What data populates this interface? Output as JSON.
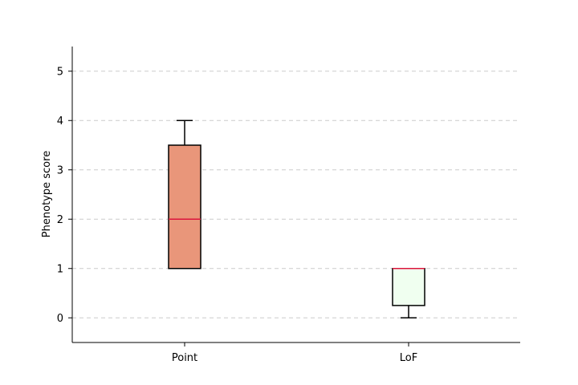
{
  "chart_data": {
    "type": "box",
    "title": "",
    "xlabel": "",
    "ylabel": "Phenotype score",
    "categories": [
      "Point",
      "LoF"
    ],
    "ylim": [
      -0.5,
      5.5
    ],
    "yticks": [
      0,
      1,
      2,
      3,
      4,
      5
    ],
    "grid": "horizontal dashed",
    "boxes": [
      {
        "category": "Point",
        "whisker_low": 1,
        "q1": 1,
        "median": 2,
        "q3": 3.5,
        "whisker_high": 4,
        "fill": "#E9967A"
      },
      {
        "category": "LoF",
        "whisker_low": 0,
        "q1": 0.25,
        "median": 1,
        "q3": 1,
        "whisker_high": 1,
        "fill": "#F0FFF0"
      }
    ],
    "colors": {
      "median": "#DC143C",
      "outline": "#000000",
      "grid": "#cccccc"
    }
  }
}
